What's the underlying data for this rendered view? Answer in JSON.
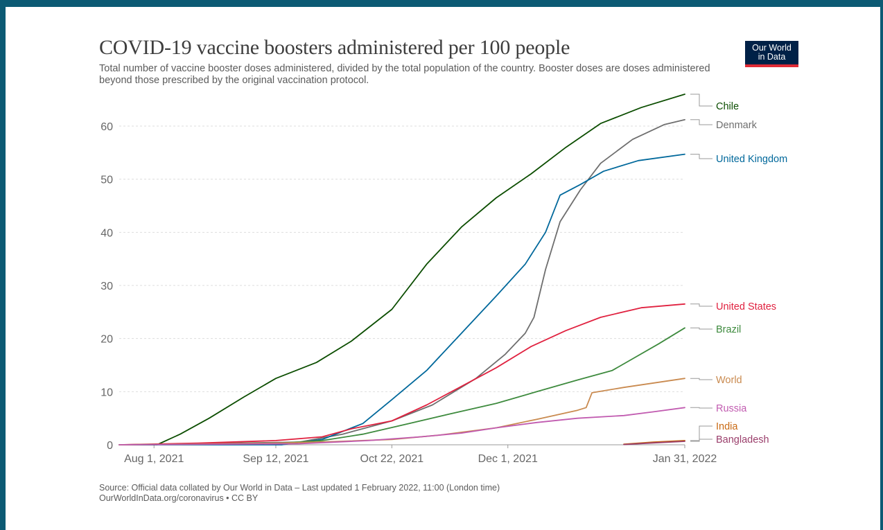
{
  "title": "COVID-19 vaccine boosters administered per 100 people",
  "subtitle": "Total number of vaccine booster doses administered, divided by the total population of the country. Booster doses are doses administered beyond those prescribed by the original vaccination protocol.",
  "logo": {
    "line1": "Our World",
    "line2": "in Data"
  },
  "source": {
    "line1": "Source: Official data collated by Our World in Data – Last updated 1 February 2022, 11:00 (London time)",
    "line2": "OurWorldInData.org/coronavirus • CC BY"
  },
  "chart_data": {
    "type": "line",
    "xlabel": "",
    "ylabel": "",
    "xlim": [
      "2021-07-20",
      "2022-01-31"
    ],
    "ylim": [
      0,
      66
    ],
    "grid": true,
    "legend": "right-end labels",
    "x_ticks": [
      "Aug 1, 2021",
      "Sep 12, 2021",
      "Oct 22, 2021",
      "Dec 1, 2021",
      "Jan 31, 2022"
    ],
    "y_ticks": [
      0,
      10,
      20,
      30,
      40,
      50,
      60
    ],
    "series": [
      {
        "name": "Chile",
        "color": "#0b4d00",
        "data": [
          [
            "2021-07-20",
            0
          ],
          [
            "2021-08-02",
            0
          ],
          [
            "2021-08-10",
            2.0
          ],
          [
            "2021-08-20",
            5.0
          ],
          [
            "2021-09-01",
            9.0
          ],
          [
            "2021-09-12",
            12.5
          ],
          [
            "2021-09-26",
            15.5
          ],
          [
            "2021-10-08",
            19.5
          ],
          [
            "2021-10-22",
            25.5
          ],
          [
            "2021-11-03",
            34.0
          ],
          [
            "2021-11-15",
            41.0
          ],
          [
            "2021-11-27",
            46.5
          ],
          [
            "2021-12-09",
            51.0
          ],
          [
            "2021-12-21",
            56.0
          ],
          [
            "2022-01-02",
            60.5
          ],
          [
            "2022-01-16",
            63.5
          ],
          [
            "2022-01-31",
            66.0
          ]
        ]
      },
      {
        "name": "Denmark",
        "color": "#6e6e6e",
        "data": [
          [
            "2021-07-20",
            0
          ],
          [
            "2021-09-20",
            0.5
          ],
          [
            "2021-10-05",
            2.0
          ],
          [
            "2021-10-22",
            4.5
          ],
          [
            "2021-11-05",
            7.5
          ],
          [
            "2021-11-20",
            12.5
          ],
          [
            "2021-11-30",
            17.0
          ],
          [
            "2021-12-07",
            21.0
          ],
          [
            "2021-12-10",
            24.0
          ],
          [
            "2021-12-14",
            33.0
          ],
          [
            "2021-12-19",
            42.0
          ],
          [
            "2021-12-26",
            48.0
          ],
          [
            "2022-01-02",
            53.0
          ],
          [
            "2022-01-13",
            57.5
          ],
          [
            "2022-01-24",
            60.3
          ],
          [
            "2022-01-31",
            61.2
          ]
        ]
      },
      {
        "name": "United Kingdom",
        "color": "#00689b",
        "data": [
          [
            "2021-07-20",
            0
          ],
          [
            "2021-09-14",
            0
          ],
          [
            "2021-09-28",
            1.0
          ],
          [
            "2021-10-12",
            4.0
          ],
          [
            "2021-10-22",
            8.5
          ],
          [
            "2021-11-03",
            14.0
          ],
          [
            "2021-11-15",
            21.0
          ],
          [
            "2021-11-27",
            28.0
          ],
          [
            "2021-12-07",
            34.0
          ],
          [
            "2021-12-14",
            40.0
          ],
          [
            "2021-12-19",
            47.0
          ],
          [
            "2021-12-26",
            49.0
          ],
          [
            "2022-01-03",
            51.5
          ],
          [
            "2022-01-15",
            53.5
          ],
          [
            "2022-01-31",
            54.7
          ]
        ]
      },
      {
        "name": "United States",
        "color": "#e0213f",
        "data": [
          [
            "2021-07-20",
            0
          ],
          [
            "2021-08-16",
            0.3
          ],
          [
            "2021-09-12",
            0.8
          ],
          [
            "2021-09-28",
            1.5
          ],
          [
            "2021-10-08",
            3.0
          ],
          [
            "2021-10-22",
            4.5
          ],
          [
            "2021-11-03",
            7.5
          ],
          [
            "2021-11-15",
            11.0
          ],
          [
            "2021-11-27",
            14.5
          ],
          [
            "2021-12-09",
            18.5
          ],
          [
            "2021-12-21",
            21.5
          ],
          [
            "2022-01-02",
            24.0
          ],
          [
            "2022-01-16",
            25.8
          ],
          [
            "2022-01-31",
            26.5
          ]
        ]
      },
      {
        "name": "Brazil",
        "color": "#3d8a3d",
        "data": [
          [
            "2021-07-20",
            0
          ],
          [
            "2021-09-10",
            0.2
          ],
          [
            "2021-09-28",
            0.8
          ],
          [
            "2021-10-12",
            2.0
          ],
          [
            "2021-10-28",
            4.0
          ],
          [
            "2021-11-11",
            5.8
          ],
          [
            "2021-11-27",
            7.8
          ],
          [
            "2021-12-11",
            10.0
          ],
          [
            "2021-12-25",
            12.2
          ],
          [
            "2022-01-06",
            14.0
          ],
          [
            "2022-01-14",
            16.5
          ],
          [
            "2022-01-22",
            19.0
          ],
          [
            "2022-01-31",
            22.0
          ]
        ]
      },
      {
        "name": "World",
        "color": "#c98a4f",
        "data": [
          [
            "2021-07-20",
            0
          ],
          [
            "2021-09-12",
            0.3
          ],
          [
            "2021-10-02",
            0.6
          ],
          [
            "2021-10-22",
            1.0
          ],
          [
            "2021-11-07",
            1.8
          ],
          [
            "2021-11-27",
            3.2
          ],
          [
            "2021-12-11",
            4.8
          ],
          [
            "2021-12-25",
            6.5
          ],
          [
            "2021-12-28",
            7.0
          ],
          [
            "2021-12-30",
            9.8
          ],
          [
            "2022-01-10",
            10.8
          ],
          [
            "2022-01-31",
            12.5
          ]
        ]
      },
      {
        "name": "Russia",
        "color": "#c15bb0",
        "data": [
          [
            "2021-07-20",
            0
          ],
          [
            "2021-09-20",
            0.2
          ],
          [
            "2021-10-14",
            0.8
          ],
          [
            "2021-11-01",
            1.5
          ],
          [
            "2021-11-15",
            2.2
          ],
          [
            "2021-11-27",
            3.2
          ],
          [
            "2021-12-11",
            4.2
          ],
          [
            "2021-12-25",
            5.0
          ],
          [
            "2022-01-10",
            5.5
          ],
          [
            "2022-01-20",
            6.2
          ],
          [
            "2022-01-31",
            7.0
          ]
        ]
      },
      {
        "name": "India",
        "color": "#c96a14",
        "data": [
          [
            "2022-01-10",
            0.1
          ],
          [
            "2022-01-20",
            0.5
          ],
          [
            "2022-01-31",
            0.8
          ]
        ]
      },
      {
        "name": "Bangladesh",
        "color": "#9a3e6b",
        "data": [
          [
            "2022-01-10",
            0.05
          ],
          [
            "2022-01-20",
            0.35
          ],
          [
            "2022-01-31",
            0.65
          ]
        ]
      }
    ]
  }
}
